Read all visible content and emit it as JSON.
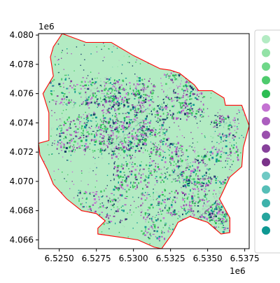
{
  "chart_data": {
    "type": "map",
    "title": "",
    "xlabel": "",
    "ylabel": "",
    "x_offset_label": "1e6",
    "y_offset_label": "1e6",
    "xlim": [
      6.5236,
      6.5378
    ],
    "ylim": [
      4.0654,
      4.0801
    ],
    "x_ticks": [
      "6.5250",
      "6.5275",
      "6.5300",
      "6.5325",
      "6.5350",
      "6.5375"
    ],
    "x_tick_values": [
      6.525,
      6.5275,
      6.53,
      6.5325,
      6.535,
      6.5375
    ],
    "y_ticks": [
      "4.066",
      "4.068",
      "4.070",
      "4.072",
      "4.074",
      "4.076",
      "4.078",
      "4.080"
    ],
    "y_tick_values": [
      4.066,
      4.068,
      4.07,
      4.072,
      4.074,
      4.076,
      4.078,
      4.08
    ],
    "boundary_color": "#ff0000",
    "base_fill_color": "#b3ebc3",
    "boundary_polygon": [
      [
        6.5252,
        4.0801
      ],
      [
        6.5268,
        4.0795
      ],
      [
        6.5285,
        4.0795
      ],
      [
        6.53,
        4.0786
      ],
      [
        6.5312,
        4.078
      ],
      [
        6.5318,
        4.0777
      ],
      [
        6.5325,
        4.0776
      ],
      [
        6.5331,
        4.0774
      ],
      [
        6.5341,
        4.0766
      ],
      [
        6.5344,
        4.0762
      ],
      [
        6.5353,
        4.0762
      ],
      [
        6.5361,
        4.0757
      ],
      [
        6.5362,
        4.0752
      ],
      [
        6.5373,
        4.0752
      ],
      [
        6.5378,
        4.0738
      ],
      [
        6.5374,
        4.0723
      ],
      [
        6.5373,
        4.071
      ],
      [
        6.5365,
        4.0703
      ],
      [
        6.5358,
        4.0688
      ],
      [
        6.5365,
        4.0675
      ],
      [
        6.5365,
        4.0665
      ],
      [
        6.5359,
        4.0664
      ],
      [
        6.535,
        4.0672
      ],
      [
        6.5338,
        4.0676
      ],
      [
        6.533,
        4.0672
      ],
      [
        6.5326,
        4.0664
      ],
      [
        6.5319,
        4.0654
      ],
      [
        6.5314,
        4.0655
      ],
      [
        6.5303,
        4.066
      ],
      [
        6.529,
        4.0662
      ],
      [
        6.5276,
        4.0664
      ],
      [
        6.5276,
        4.0668
      ],
      [
        6.5281,
        4.0673
      ],
      [
        6.5275,
        4.0678
      ],
      [
        6.5265,
        4.068
      ],
      [
        6.5255,
        4.0688
      ],
      [
        6.5246,
        4.0698
      ],
      [
        6.5242,
        4.0708
      ],
      [
        6.5237,
        4.0718
      ],
      [
        6.5236,
        4.0726
      ],
      [
        6.5243,
        4.0728
      ],
      [
        6.5243,
        4.0747
      ],
      [
        6.5239,
        4.076
      ],
      [
        6.5246,
        4.0772
      ],
      [
        6.5244,
        4.0785
      ],
      [
        6.5246,
        4.0792
      ]
    ],
    "legend": {
      "placement": "right",
      "marker_colors": [
        "#b3ebc3",
        "#93e2a6",
        "#6fd789",
        "#4ecb6d",
        "#2cbd53",
        "#c472d2",
        "#ab5ebe",
        "#9a50ad",
        "#87419b",
        "#7a3389",
        "#6fc9c4",
        "#56beb7",
        "#3eb2ab",
        "#26a59e",
        "#0e9892"
      ]
    },
    "pattern_palette": [
      "#c472d2",
      "#ab5ebe",
      "#87419b",
      "#2cbd53",
      "#4ecb6d",
      "#0e9892",
      "#1a3f6b"
    ]
  }
}
